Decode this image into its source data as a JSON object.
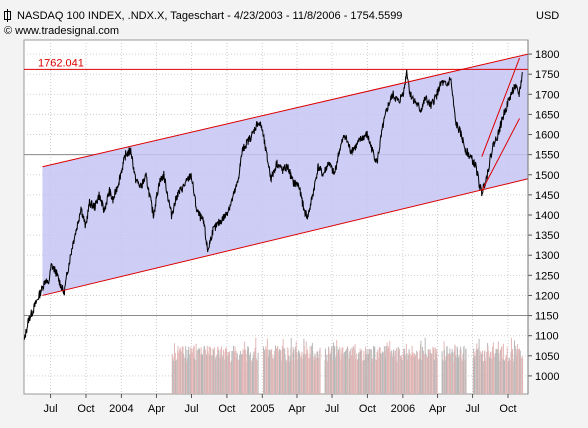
{
  "header": {
    "title": "NASDAQ 100 INDEX, .NDX.X, Tageschart - 4/23/2003 - 11/8/2006 - 1754.5599",
    "copyright": "© www.tradesignal.com",
    "currency": "USD"
  },
  "colors": {
    "background": "#f3f3f3",
    "plot_background": "#ffffff",
    "grid": "#cfcfcf",
    "channel_fill": "#c4c4f4",
    "channel_line": "#dd0000",
    "price_line": "#000000",
    "volume_up": "#e3b6b6",
    "volume_down": "#b7b7b7",
    "resistance_label": "#dd0000"
  },
  "chart_data": {
    "type": "line",
    "title": "NASDAQ 100 INDEX, .NDX.X, Tageschart - 4/23/2003 - 11/8/2006 - 1754.5599",
    "ylabel": "USD",
    "ylim": [
      955,
      1835
    ],
    "y_ticks": [
      1000,
      1050,
      1100,
      1150,
      1200,
      1250,
      1300,
      1350,
      1400,
      1450,
      1500,
      1550,
      1600,
      1650,
      1700,
      1750,
      1800
    ],
    "x_range": [
      "2003-04-23",
      "2006-11-22"
    ],
    "x_ticks": [
      {
        "date": "2003-07-01",
        "label": "Jul"
      },
      {
        "date": "2003-10-01",
        "label": "Oct"
      },
      {
        "date": "2004-01-01",
        "label": "2004"
      },
      {
        "date": "2004-04-01",
        "label": "Apr"
      },
      {
        "date": "2004-07-01",
        "label": "Jul"
      },
      {
        "date": "2004-10-01",
        "label": "Oct"
      },
      {
        "date": "2005-01-01",
        "label": "2005"
      },
      {
        "date": "2005-04-01",
        "label": "Apr"
      },
      {
        "date": "2005-07-01",
        "label": "Jul"
      },
      {
        "date": "2005-10-01",
        "label": "Oct"
      },
      {
        "date": "2006-01-01",
        "label": "2006"
      },
      {
        "date": "2006-04-01",
        "label": "Apr"
      },
      {
        "date": "2006-07-01",
        "label": "Jul"
      },
      {
        "date": "2006-10-01",
        "label": "Oct"
      }
    ],
    "series": [
      {
        "name": "NASDAQ 100 INDEX",
        "points": [
          [
            "2003-04-23",
            1085
          ],
          [
            "2003-05-05",
            1140
          ],
          [
            "2003-05-15",
            1160
          ],
          [
            "2003-05-28",
            1190
          ],
          [
            "2003-06-10",
            1220
          ],
          [
            "2003-06-18",
            1240
          ],
          [
            "2003-06-25",
            1225
          ],
          [
            "2003-07-03",
            1275
          ],
          [
            "2003-07-14",
            1260
          ],
          [
            "2003-07-24",
            1235
          ],
          [
            "2003-08-05",
            1205
          ],
          [
            "2003-08-15",
            1265
          ],
          [
            "2003-08-28",
            1330
          ],
          [
            "2003-09-10",
            1380
          ],
          [
            "2003-09-18",
            1420
          ],
          [
            "2003-09-30",
            1370
          ],
          [
            "2003-10-10",
            1430
          ],
          [
            "2003-10-24",
            1420
          ],
          [
            "2003-11-04",
            1450
          ],
          [
            "2003-11-17",
            1410
          ],
          [
            "2003-12-01",
            1460
          ],
          [
            "2003-12-10",
            1435
          ],
          [
            "2003-12-24",
            1480
          ],
          [
            "2004-01-12",
            1550
          ],
          [
            "2004-01-26",
            1560
          ],
          [
            "2004-02-06",
            1490
          ],
          [
            "2004-02-20",
            1470
          ],
          [
            "2004-03-05",
            1495
          ],
          [
            "2004-03-24",
            1400
          ],
          [
            "2004-04-08",
            1480
          ],
          [
            "2004-04-20",
            1500
          ],
          [
            "2004-05-10",
            1400
          ],
          [
            "2004-05-25",
            1450
          ],
          [
            "2004-06-10",
            1470
          ],
          [
            "2004-06-30",
            1500
          ],
          [
            "2004-07-15",
            1410
          ],
          [
            "2004-08-02",
            1380
          ],
          [
            "2004-08-12",
            1310
          ],
          [
            "2004-08-25",
            1360
          ],
          [
            "2004-09-10",
            1380
          ],
          [
            "2004-09-28",
            1400
          ],
          [
            "2004-10-12",
            1430
          ],
          [
            "2004-10-29",
            1480
          ],
          [
            "2004-11-10",
            1560
          ],
          [
            "2004-11-22",
            1580
          ],
          [
            "2004-12-06",
            1600
          ],
          [
            "2004-12-20",
            1630
          ],
          [
            "2004-12-30",
            1620
          ],
          [
            "2005-01-10",
            1560
          ],
          [
            "2005-01-24",
            1490
          ],
          [
            "2005-02-08",
            1530
          ],
          [
            "2005-02-22",
            1510
          ],
          [
            "2005-03-08",
            1520
          ],
          [
            "2005-03-22",
            1480
          ],
          [
            "2005-04-05",
            1475
          ],
          [
            "2005-04-20",
            1410
          ],
          [
            "2005-04-29",
            1395
          ],
          [
            "2005-05-12",
            1450
          ],
          [
            "2005-05-26",
            1520
          ],
          [
            "2005-06-08",
            1500
          ],
          [
            "2005-06-22",
            1530
          ],
          [
            "2005-07-07",
            1500
          ],
          [
            "2005-07-20",
            1560
          ],
          [
            "2005-08-03",
            1600
          ],
          [
            "2005-08-18",
            1560
          ],
          [
            "2005-09-01",
            1570
          ],
          [
            "2005-09-15",
            1590
          ],
          [
            "2005-09-30",
            1600
          ],
          [
            "2005-10-14",
            1560
          ],
          [
            "2005-10-26",
            1530
          ],
          [
            "2005-11-10",
            1620
          ],
          [
            "2005-11-23",
            1670
          ],
          [
            "2005-12-06",
            1700
          ],
          [
            "2005-12-21",
            1680
          ],
          [
            "2006-01-04",
            1710
          ],
          [
            "2006-01-11",
            1760
          ],
          [
            "2006-01-20",
            1700
          ],
          [
            "2006-02-03",
            1680
          ],
          [
            "2006-02-16",
            1660
          ],
          [
            "2006-03-01",
            1690
          ],
          [
            "2006-03-15",
            1670
          ],
          [
            "2006-03-30",
            1700
          ],
          [
            "2006-04-12",
            1730
          ],
          [
            "2006-04-25",
            1720
          ],
          [
            "2006-05-05",
            1740
          ],
          [
            "2006-05-18",
            1630
          ],
          [
            "2006-06-01",
            1600
          ],
          [
            "2006-06-14",
            1560
          ],
          [
            "2006-06-28",
            1540
          ],
          [
            "2006-07-10",
            1520
          ],
          [
            "2006-07-20",
            1470
          ],
          [
            "2006-07-25",
            1455
          ],
          [
            "2006-08-08",
            1500
          ],
          [
            "2006-08-22",
            1570
          ],
          [
            "2006-09-05",
            1600
          ],
          [
            "2006-09-20",
            1650
          ],
          [
            "2006-10-05",
            1690
          ],
          [
            "2006-10-18",
            1720
          ],
          [
            "2006-10-30",
            1700
          ],
          [
            "2006-11-08",
            1755
          ]
        ]
      }
    ],
    "annotations": [
      {
        "type": "horizontal_line",
        "value": 1762.041,
        "label": "1762.041"
      },
      {
        "type": "channel",
        "lower": [
          [
            "2003-06-10",
            1200
          ],
          [
            "2006-11-22",
            1490
          ]
        ],
        "upper": [
          [
            "2003-06-10",
            1520
          ],
          [
            "2006-11-22",
            1800
          ]
        ]
      },
      {
        "type": "channel",
        "lower": [
          [
            "2006-07-25",
            1460
          ],
          [
            "2006-10-31",
            1640
          ]
        ],
        "upper": [
          [
            "2006-07-25",
            1545
          ],
          [
            "2006-10-31",
            1790
          ]
        ]
      },
      {
        "type": "horizontal_line",
        "value": 1550
      },
      {
        "type": "horizontal_line",
        "value": 1150
      }
    ],
    "volume_axis_max": 1160,
    "volume_axis_min": 955,
    "volume_pattern": {
      "start": "2004-05-12",
      "end": "2006-11-08",
      "gaps": [
        [
          "2004-12-22",
          "2005-01-03"
        ],
        [
          "2005-06-01",
          "2005-06-10"
        ],
        [
          "2006-04-01",
          "2006-04-12"
        ],
        [
          "2006-06-15",
          "2006-06-30"
        ]
      ]
    }
  }
}
